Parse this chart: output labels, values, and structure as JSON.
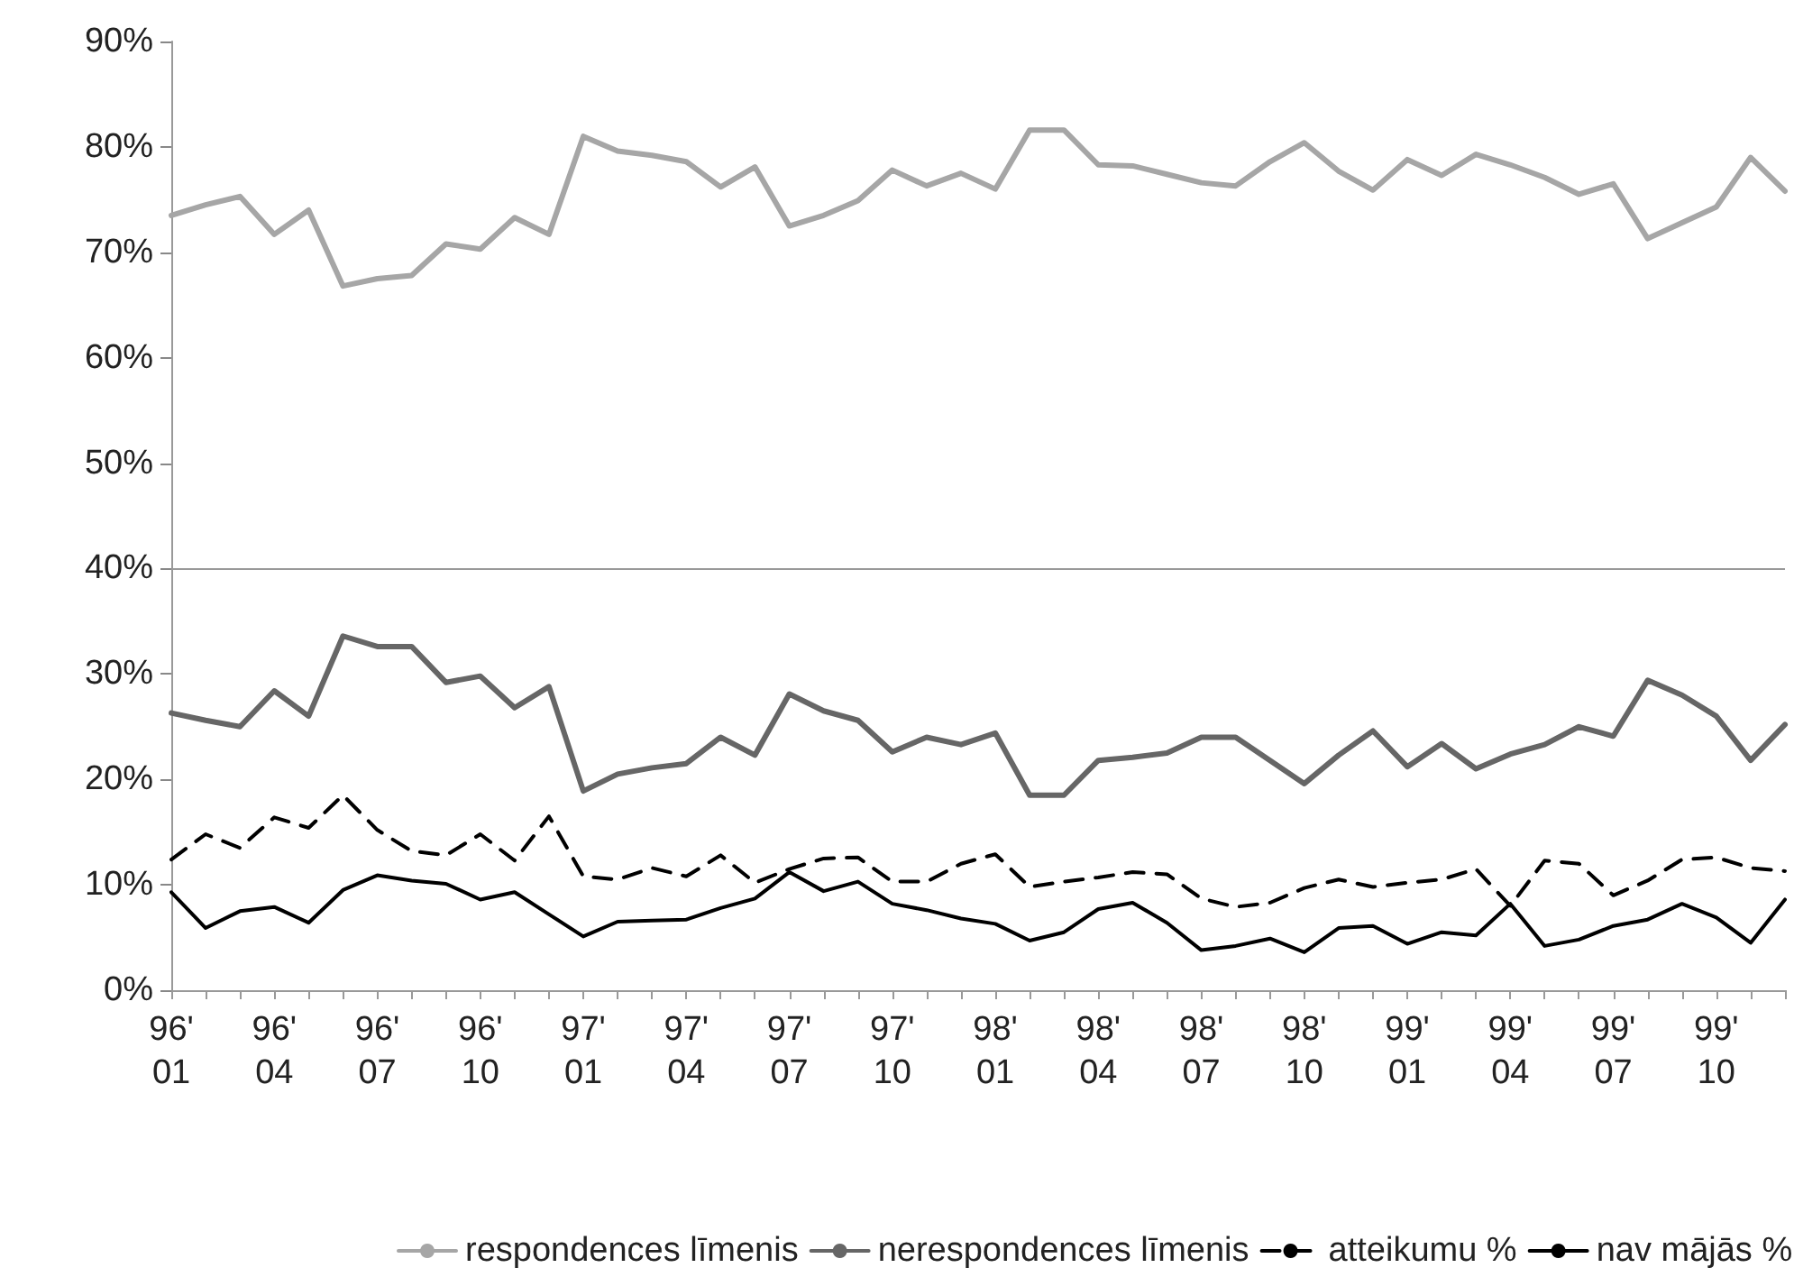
{
  "chart_data": {
    "type": "line",
    "categories": [
      "96'\n01",
      null,
      null,
      "96'\n04",
      null,
      null,
      "96'\n07",
      null,
      null,
      "96'\n10",
      null,
      null,
      "97'\n01",
      null,
      null,
      "97'\n04",
      null,
      null,
      "97'\n07",
      null,
      null,
      "97'\n10",
      null,
      null,
      "98'\n01",
      null,
      null,
      "98'\n04",
      null,
      null,
      "98'\n07",
      null,
      null,
      "98'\n10",
      null,
      null,
      "99'\n01",
      null,
      null,
      "99'\n04",
      null,
      null,
      "99'\n07",
      null,
      null,
      "99'\n10",
      null,
      null
    ],
    "series": [
      {
        "name": "respondences līmenis",
        "color": "#a6a6a6",
        "line_style": "solid",
        "values": [
          73.5,
          74.5,
          75.3,
          71.7,
          74,
          66.8,
          67.5,
          67.8,
          70.8,
          70.3,
          73.3,
          71.7,
          81,
          79.6,
          79.2,
          78.6,
          76.2,
          78.1,
          72.5,
          73.5,
          74.9,
          77.8,
          76.3,
          77.5,
          76,
          81.6,
          81.6,
          78.3,
          78.2,
          77.4,
          76.6,
          76.3,
          78.6,
          80.4,
          77.7,
          75.9,
          78.8,
          77.3,
          79.3,
          78.3,
          77.1,
          75.5,
          76.5,
          71.3,
          72.8,
          74.3,
          79,
          75.8
        ]
      },
      {
        "name": "nerespondences līmenis",
        "color": "#666666",
        "line_style": "solid",
        "values": [
          26.3,
          25.6,
          25,
          28.4,
          26,
          33.6,
          32.6,
          32.6,
          29.2,
          29.8,
          26.8,
          28.8,
          18.9,
          20.5,
          21.1,
          21.5,
          24,
          22.3,
          28.1,
          26.5,
          25.6,
          22.6,
          24,
          23.3,
          24.4,
          18.5,
          18.5,
          21.8,
          22.1,
          22.5,
          24,
          24,
          21.8,
          19.6,
          22.3,
          24.6,
          21.2,
          23.4,
          21,
          22.4,
          23.3,
          25,
          24.1,
          29.4,
          28,
          26,
          21.8,
          25.2
        ]
      },
      {
        "name": "atteikumu %",
        "color": "#000000",
        "line_style": "dashed",
        "values": [
          12.4,
          14.8,
          13.5,
          16.4,
          15.4,
          18.5,
          15.2,
          13.2,
          12.8,
          14.8,
          12.3,
          16.5,
          10.8,
          10.5,
          11.6,
          10.8,
          12.8,
          10.2,
          11.5,
          12.5,
          12.6,
          10.3,
          10.3,
          12,
          12.9,
          9.8,
          10.3,
          10.7,
          11.2,
          11,
          8.7,
          7.9,
          8.3,
          9.7,
          10.5,
          9.8,
          10.2,
          10.5,
          11.5,
          8,
          12.3,
          12,
          9,
          10.4,
          12.4,
          12.6,
          11.6,
          11.3
        ]
      },
      {
        "name": "nav mājās %",
        "color": "#000000",
        "line_style": "solid",
        "values": [
          9.3,
          5.9,
          7.5,
          7.9,
          6.4,
          9.5,
          10.9,
          10.4,
          10.1,
          8.6,
          9.3,
          7.2,
          5.1,
          6.5,
          6.6,
          6.7,
          7.8,
          8.7,
          11.2,
          9.4,
          10.3,
          8.2,
          7.6,
          6.8,
          6.3,
          4.7,
          5.5,
          7.7,
          8.3,
          6.4,
          3.8,
          4.2,
          4.9,
          3.6,
          5.9,
          6.1,
          4.4,
          5.5,
          5.2,
          8.2,
          4.2,
          4.8,
          6.1,
          6.7,
          8.2,
          6.9,
          4.5,
          8.6
        ]
      }
    ],
    "ylim": [
      0,
      90
    ],
    "yticks": [
      {
        "value": 0,
        "label": "0%"
      },
      {
        "value": 10,
        "label": "10%"
      },
      {
        "value": 20,
        "label": "20%"
      },
      {
        "value": 30,
        "label": "30%"
      },
      {
        "value": 40,
        "label": "40%"
      },
      {
        "value": 50,
        "label": "50%"
      },
      {
        "value": 60,
        "label": "60%"
      },
      {
        "value": 70,
        "label": "70%"
      },
      {
        "value": 80,
        "label": "80%"
      },
      {
        "value": 90,
        "label": "90%"
      }
    ],
    "ref_lines": [
      {
        "axis": "y",
        "value": 40,
        "color": "#999999",
        "line_style": "solid"
      }
    ],
    "grid": false,
    "legend": "bottom",
    "marker": "none"
  }
}
